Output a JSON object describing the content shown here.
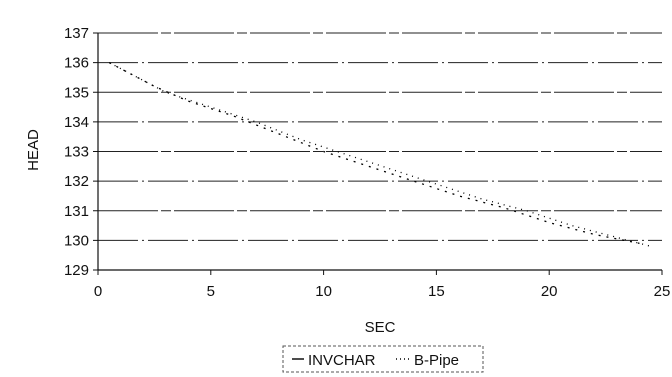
{
  "chart_data": {
    "type": "line",
    "xlabel": "SEC",
    "ylabel": "HEAD",
    "xlim": [
      0,
      25
    ],
    "ylim": [
      129,
      137
    ],
    "x_ticks": [
      "0",
      "5",
      "10",
      "15",
      "20",
      "25"
    ],
    "y_ticks": [
      "129",
      "130",
      "131",
      "132",
      "133",
      "134",
      "135",
      "136",
      "137"
    ],
    "grid": true,
    "legend": "bottom-center",
    "series": [
      {
        "name": "INVCHAR",
        "style": "solid",
        "color": "#000000",
        "x": [
          0.5,
          1.5,
          2.5,
          4,
          6,
          8,
          10,
          12,
          14,
          16,
          18,
          20,
          22,
          24
        ],
        "y": [
          136.0,
          135.6,
          135.2,
          134.7,
          134.2,
          133.6,
          133.0,
          132.5,
          132.0,
          131.5,
          131.1,
          130.6,
          130.2,
          129.9
        ]
      },
      {
        "name": "B-Pipe",
        "style": "dotted",
        "color": "#000000",
        "x": [
          0.5,
          2,
          3,
          5,
          7,
          9,
          11,
          13,
          15,
          17,
          19,
          21,
          23,
          24.5
        ],
        "y": [
          136.0,
          135.4,
          135.0,
          134.5,
          134.0,
          133.4,
          132.9,
          132.4,
          131.9,
          131.4,
          131.0,
          130.5,
          130.1,
          129.8
        ]
      }
    ]
  }
}
